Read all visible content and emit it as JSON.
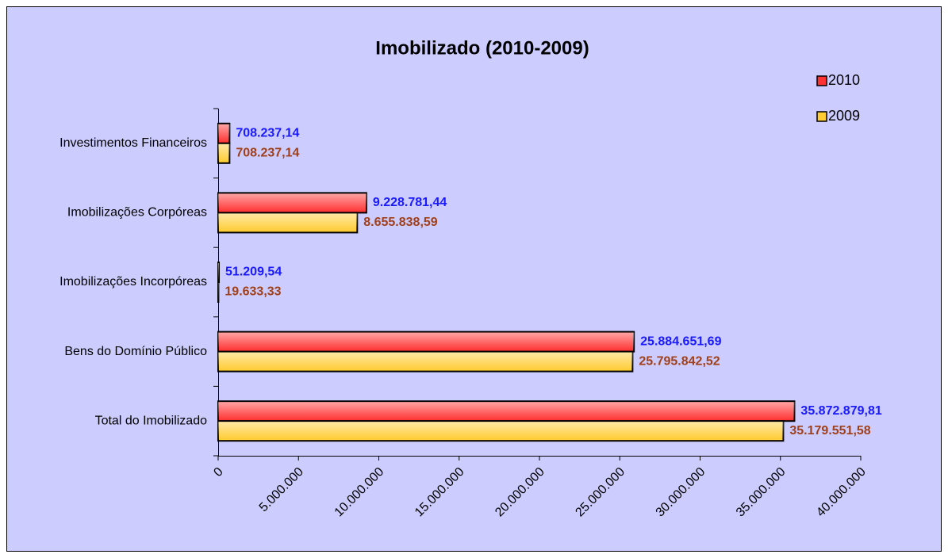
{
  "chart_data": {
    "type": "bar",
    "orientation": "horizontal",
    "title": "Imobilizado (2010-2009)",
    "categories": [
      "Investimentos Financeiros",
      "Imobilizações Corpóreas",
      "Imobilizações Incorpóreas",
      "Bens do Domínio Público",
      "Total do Imobilizado"
    ],
    "series": [
      {
        "name": "2010",
        "color": "#ff3333",
        "label_color": "#1a1aff",
        "values": [
          708237.14,
          9228781.44,
          51209.54,
          25884651.69,
          35872879.81
        ],
        "value_labels": [
          "708.237,14",
          "9.228.781,44",
          "51.209,54",
          "25.884.651,69",
          "35.872.879,81"
        ]
      },
      {
        "name": "2009",
        "color": "#ffcc33",
        "label_color": "#a0401a",
        "values": [
          708237.14,
          8655838.59,
          19633.33,
          25795842.52,
          35179551.58
        ],
        "value_labels": [
          "708.237,14",
          "8.655.838,59",
          "19.633,33",
          "25.795.842,52",
          "35.179.551,58"
        ]
      }
    ],
    "xlim": [
      0,
      40000000
    ],
    "xticks": [
      0,
      {
        "value": 5000000,
        "label": "5.000.000"
      },
      {
        "value": 10000000,
        "label": "10.000.000"
      },
      {
        "value": 15000000,
        "label": "15.000.000"
      },
      {
        "value": 20000000,
        "label": "20.000.000"
      },
      {
        "value": 25000000,
        "label": "25.000.000"
      },
      {
        "value": 30000000,
        "label": "30.000.000"
      },
      {
        "value": 35000000,
        "label": "35.000.000"
      },
      {
        "value": 40000000,
        "label": "40.000.000"
      }
    ],
    "legend": "right"
  }
}
